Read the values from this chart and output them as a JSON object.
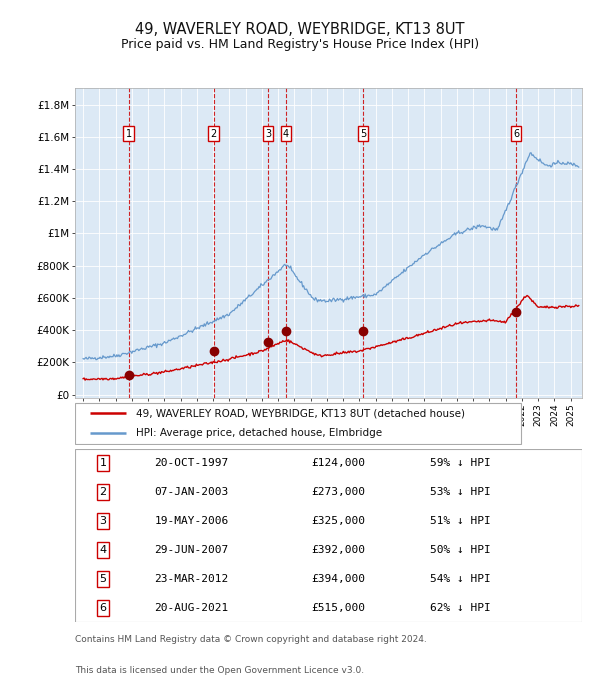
{
  "title": "49, WAVERLEY ROAD, WEYBRIDGE, KT13 8UT",
  "subtitle": "Price paid vs. HM Land Registry's House Price Index (HPI)",
  "title_fontsize": 10.5,
  "subtitle_fontsize": 9,
  "background_color": "#ffffff",
  "plot_bg_color": "#dce9f5",
  "grid_color": "#ffffff",
  "ylabel_ticks": [
    "£0",
    "£200K",
    "£400K",
    "£600K",
    "£800K",
    "£1M",
    "£1.2M",
    "£1.4M",
    "£1.6M",
    "£1.8M"
  ],
  "ylabel_values": [
    0,
    200000,
    400000,
    600000,
    800000,
    1000000,
    1200000,
    1400000,
    1600000,
    1800000
  ],
  "xlim_start": 1994.5,
  "xlim_end": 2025.7,
  "ylim_min": -20000,
  "ylim_max": 1900000,
  "transactions": [
    {
      "num": 1,
      "date": "20-OCT-1997",
      "year": 1997.8,
      "price": 124000,
      "pct": "59% ↓ HPI"
    },
    {
      "num": 2,
      "date": "07-JAN-2003",
      "year": 2003.03,
      "price": 273000,
      "pct": "53% ↓ HPI"
    },
    {
      "num": 3,
      "date": "19-MAY-2006",
      "year": 2006.38,
      "price": 325000,
      "pct": "51% ↓ HPI"
    },
    {
      "num": 4,
      "date": "29-JUN-2007",
      "year": 2007.49,
      "price": 392000,
      "pct": "50% ↓ HPI"
    },
    {
      "num": 5,
      "date": "23-MAR-2012",
      "year": 2012.22,
      "price": 394000,
      "pct": "54% ↓ HPI"
    },
    {
      "num": 6,
      "date": "20-AUG-2021",
      "year": 2021.64,
      "price": 515000,
      "pct": "62% ↓ HPI"
    }
  ],
  "legend_line1": "49, WAVERLEY ROAD, WEYBRIDGE, KT13 8UT (detached house)",
  "legend_line2": "HPI: Average price, detached house, Elmbridge",
  "footer1": "Contains HM Land Registry data © Crown copyright and database right 2024.",
  "footer2": "This data is licensed under the Open Government Licence v3.0.",
  "red_line_color": "#cc0000",
  "blue_line_color": "#6699cc",
  "dashed_line_color": "#cc0000",
  "marker_color": "#880000"
}
